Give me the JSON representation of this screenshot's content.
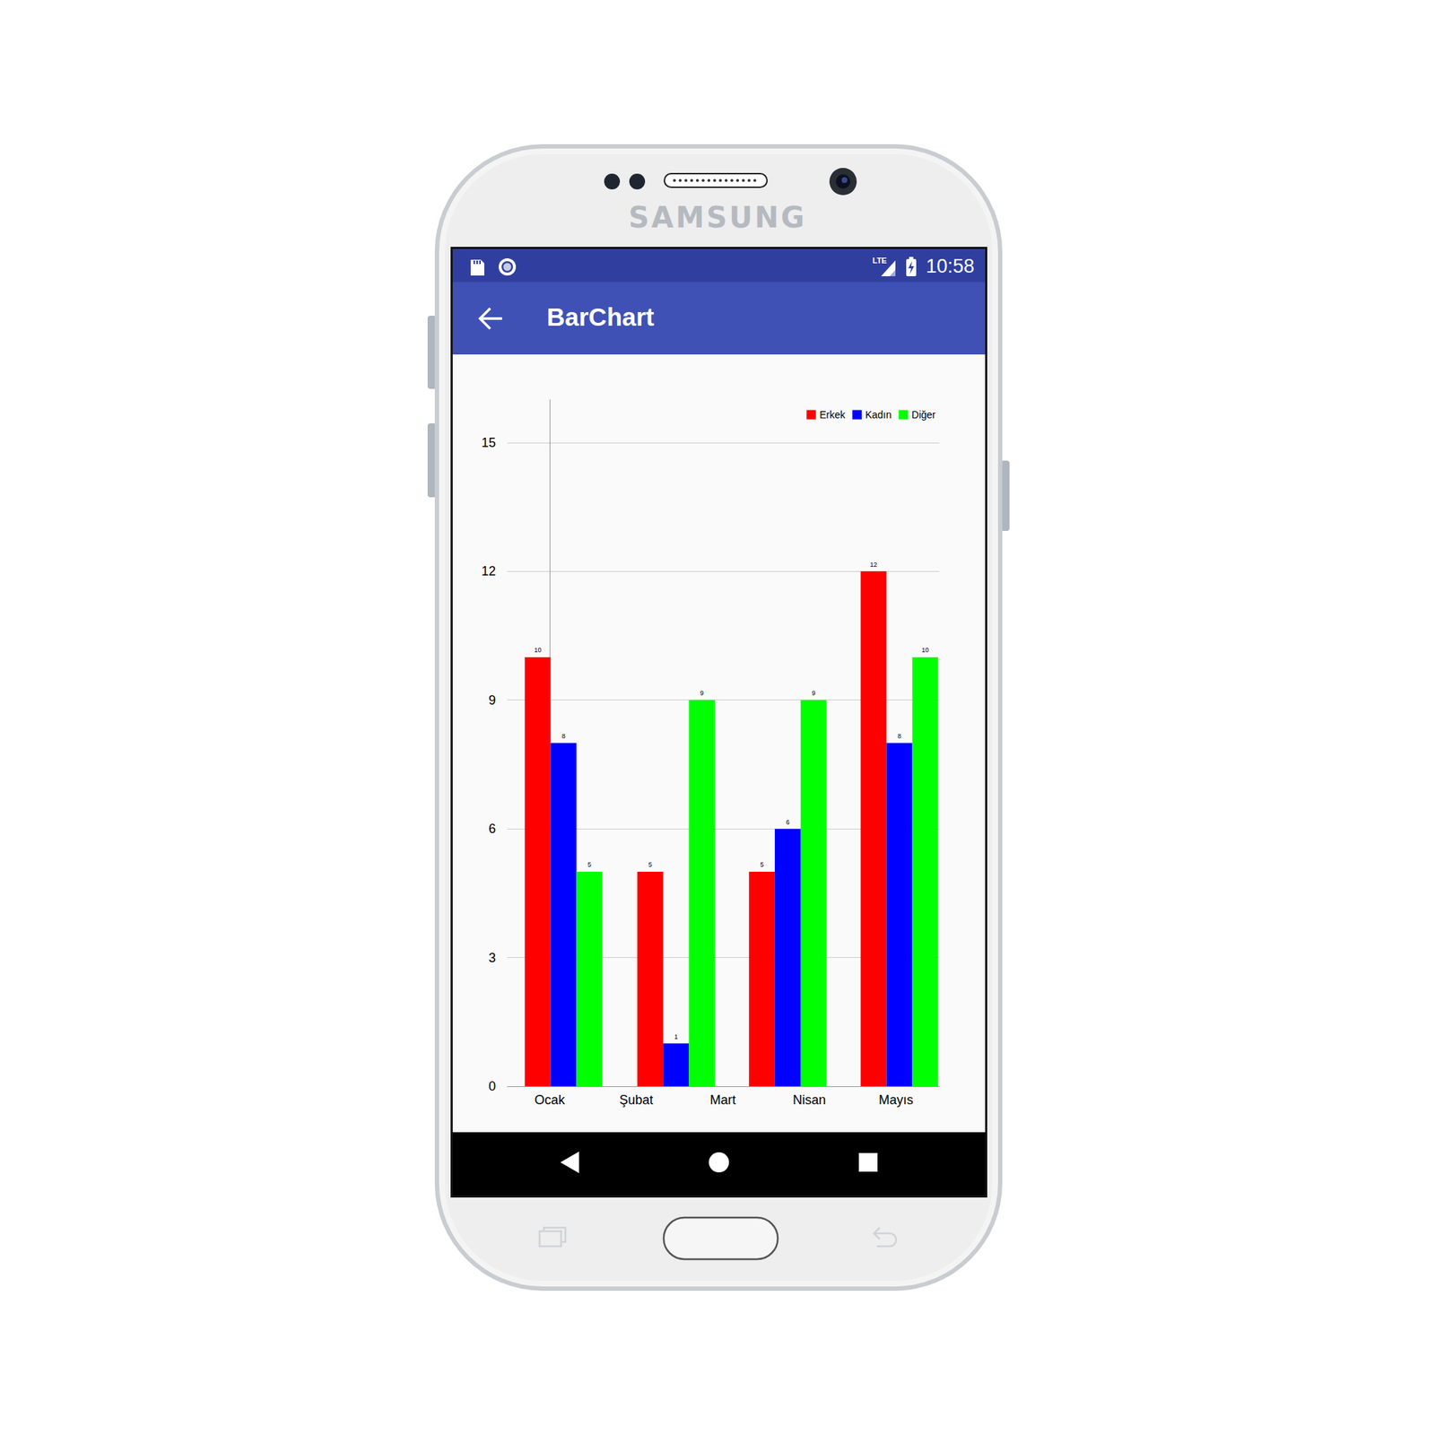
{
  "device": {
    "brand": "SAMSUNG"
  },
  "status_bar": {
    "network": "LTE",
    "time": "10:58"
  },
  "app_bar": {
    "title": "BarChart"
  },
  "chart_data": {
    "type": "bar",
    "x": [
      0.16,
      1.46,
      2.75,
      4.04
    ],
    "xlim": [
      -0.49,
      4.5
    ],
    "xticks": [
      {
        "value": 0,
        "label": "Ocak"
      },
      {
        "value": 1,
        "label": "Şubat"
      },
      {
        "value": 2,
        "label": "Mart"
      },
      {
        "value": 3,
        "label": "Nisan"
      },
      {
        "value": 4,
        "label": "Mayıs"
      }
    ],
    "series": [
      {
        "name": "Erkek",
        "color": "#ff0000",
        "values": [
          10,
          5,
          5,
          12
        ]
      },
      {
        "name": "Kadın",
        "color": "#0000ff",
        "values": [
          8,
          1,
          6,
          8
        ]
      },
      {
        "name": "Diğer",
        "color": "#00ff00",
        "values": [
          5,
          9,
          9,
          10
        ]
      }
    ],
    "ylim": [
      0,
      16
    ],
    "yticks": [
      0,
      3,
      6,
      9,
      12,
      15
    ],
    "grid": true,
    "legend": "upper right",
    "data_labels": true
  }
}
